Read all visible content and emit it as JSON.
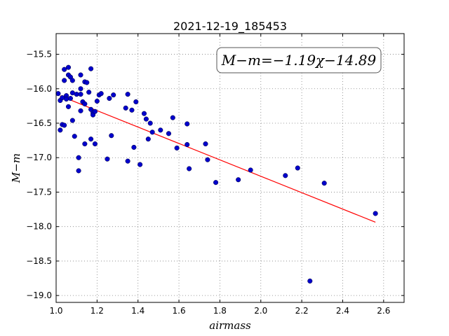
{
  "chart_data": {
    "type": "scatter",
    "title": "2021-12-19_185453",
    "xlabel": "airmass",
    "ylabel": "M−m",
    "xlim": [
      1.0,
      2.7
    ],
    "ylim": [
      -19.1,
      -15.2
    ],
    "y_inverted": true,
    "x_ticks": [
      1.0,
      1.2,
      1.4,
      1.6,
      1.8,
      2.0,
      2.2,
      2.4,
      2.6
    ],
    "x_tick_labels": [
      "1.0",
      "1.2",
      "1.4",
      "1.6",
      "1.8",
      "2.0",
      "2.2",
      "2.4",
      "2.6"
    ],
    "y_ticks": [
      -15.5,
      -16.0,
      -16.5,
      -17.0,
      -17.5,
      -18.0,
      -18.5,
      -19.0
    ],
    "y_tick_labels": [
      "−15.5",
      "−16.0",
      "−16.5",
      "−17.0",
      "−17.5",
      "−18.0",
      "−18.5",
      "−19.0"
    ],
    "grid": true,
    "annotation": "M−m=−1.19χ−14.89",
    "fit": {
      "slope": -1.19,
      "intercept": -14.89,
      "x_range": [
        1.02,
        2.56
      ],
      "color": "#ff0000"
    },
    "point_color": "#0000cc",
    "points": [
      [
        1.01,
        -16.07
      ],
      [
        1.02,
        -16.17
      ],
      [
        1.02,
        -16.6
      ],
      [
        1.03,
        -16.13
      ],
      [
        1.03,
        -16.52
      ],
      [
        1.04,
        -15.72
      ],
      [
        1.04,
        -15.88
      ],
      [
        1.04,
        -16.53
      ],
      [
        1.05,
        -16.1
      ],
      [
        1.05,
        -16.15
      ],
      [
        1.06,
        -15.69
      ],
      [
        1.06,
        -15.8
      ],
      [
        1.06,
        -16.26
      ],
      [
        1.07,
        -15.83
      ],
      [
        1.07,
        -16.14
      ],
      [
        1.08,
        -15.88
      ],
      [
        1.08,
        -16.06
      ],
      [
        1.08,
        -16.46
      ],
      [
        1.09,
        -16.69
      ],
      [
        1.1,
        -16.08
      ],
      [
        1.11,
        -17.0
      ],
      [
        1.11,
        -17.19
      ],
      [
        1.12,
        -16.0
      ],
      [
        1.12,
        -16.08
      ],
      [
        1.12,
        -16.32
      ],
      [
        1.12,
        -15.8
      ],
      [
        1.13,
        -16.19
      ],
      [
        1.14,
        -16.22
      ],
      [
        1.14,
        -16.8
      ],
      [
        1.14,
        -15.9
      ],
      [
        1.15,
        -15.91
      ],
      [
        1.16,
        -16.05
      ],
      [
        1.17,
        -16.3
      ],
      [
        1.17,
        -16.73
      ],
      [
        1.17,
        -15.71
      ],
      [
        1.18,
        -16.35
      ],
      [
        1.18,
        -16.38
      ],
      [
        1.19,
        -16.33
      ],
      [
        1.19,
        -16.8
      ],
      [
        1.2,
        -16.18
      ],
      [
        1.21,
        -16.09
      ],
      [
        1.22,
        -16.07
      ],
      [
        1.25,
        -17.02
      ],
      [
        1.26,
        -16.14
      ],
      [
        1.27,
        -16.68
      ],
      [
        1.28,
        -16.09
      ],
      [
        1.34,
        -16.28
      ],
      [
        1.35,
        -16.08
      ],
      [
        1.35,
        -17.05
      ],
      [
        1.37,
        -16.31
      ],
      [
        1.38,
        -16.85
      ],
      [
        1.39,
        -16.19
      ],
      [
        1.41,
        -17.1
      ],
      [
        1.43,
        -16.36
      ],
      [
        1.44,
        -16.44
      ],
      [
        1.45,
        -16.73
      ],
      [
        1.46,
        -16.5
      ],
      [
        1.47,
        -16.63
      ],
      [
        1.51,
        -16.6
      ],
      [
        1.55,
        -16.65
      ],
      [
        1.57,
        -16.42
      ],
      [
        1.59,
        -16.86
      ],
      [
        1.64,
        -16.51
      ],
      [
        1.64,
        -16.81
      ],
      [
        1.65,
        -17.16
      ],
      [
        1.73,
        -16.8
      ],
      [
        1.74,
        -17.03
      ],
      [
        1.78,
        -17.36
      ],
      [
        1.89,
        -17.32
      ],
      [
        1.95,
        -17.18
      ],
      [
        2.12,
        -17.26
      ],
      [
        2.18,
        -17.15
      ],
      [
        2.24,
        -18.79
      ],
      [
        2.31,
        -17.37
      ],
      [
        2.56,
        -17.81
      ]
    ]
  }
}
